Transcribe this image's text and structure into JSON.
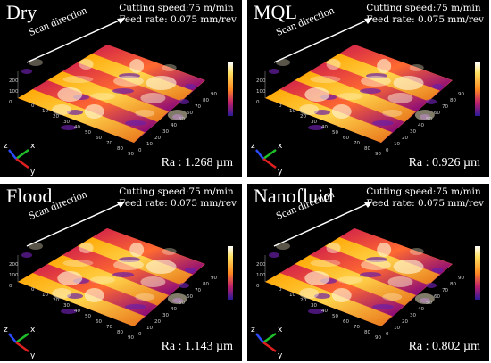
{
  "panels": [
    {
      "title": "Dry",
      "speed": "Cutting speed:75 m/min",
      "feed": "Feed rate: 0.075 mm/rev",
      "scan": "Scan direction",
      "ra": "Ra : 1.268 µm"
    },
    {
      "title": "MQL",
      "speed": "Cutting speed:75 m/min",
      "feed": "Feed rate: 0.075 mm/rev",
      "scan": "Scan direction",
      "ra": "Ra : 0.926 µm"
    },
    {
      "title": "Flood",
      "speed": "Cutting speed:75 m/min",
      "feed": "Feed rate: 0.075 mm/rev",
      "scan": "Scan direction",
      "ra": "Ra : 1.143 µm"
    },
    {
      "title": "Nanofluid",
      "speed": "Cutting speed:75 m/min",
      "feed": "Feed rate: 0.075 mm/rev",
      "scan": "Scan direction",
      "ra": "Ra : 0.802 µm"
    }
  ],
  "axes": {
    "z": "z",
    "x": "x",
    "y": "y",
    "z_ticks": [
      "200",
      "100",
      "0"
    ],
    "x_ticks": [
      "0",
      "10",
      "20",
      "30",
      "40",
      "50",
      "60",
      "70",
      "80",
      "90"
    ]
  },
  "colors": {
    "background": "#000000",
    "surface_high": "#ffffff",
    "surface_mid": "#ffa500",
    "surface_low": "#800080",
    "axis_x": "#1fbf2a",
    "axis_y": "#e02020",
    "axis_z": "#2a4bff"
  }
}
